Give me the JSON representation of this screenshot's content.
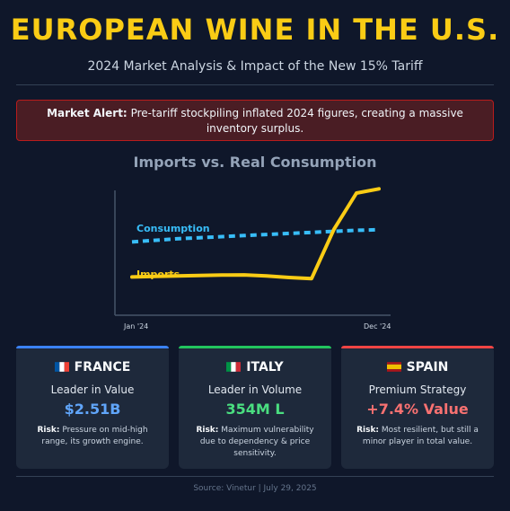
{
  "header": {
    "title": "EUROPEAN WINE IN THE U.S.",
    "subtitle": "2024 Market Analysis & Impact of the New 15% Tariff"
  },
  "alert": {
    "label": "Market Alert:",
    "text": "Pre-tariff stockpiling inflated 2024 figures, creating a massive inventory surplus."
  },
  "chart_data": {
    "type": "line",
    "title": "Imports vs. Real Consumption",
    "x_labels": [
      "Jan '24",
      "Dec '24"
    ],
    "x": [
      0,
      1,
      2,
      3,
      4,
      5,
      6,
      7,
      8,
      9,
      10,
      11
    ],
    "series": [
      {
        "name": "Consumption",
        "style": "dashed",
        "color": "#38bdf8",
        "values": [
          58,
          59.5,
          61,
          62,
          63,
          64,
          65,
          66,
          67,
          68,
          69,
          69.5
        ]
      },
      {
        "name": "Imports",
        "style": "solid",
        "color": "#facc15",
        "values": [
          25,
          25.5,
          26,
          26.5,
          26.8,
          27,
          26,
          24.5,
          23.5,
          70,
          104,
          108
        ]
      }
    ],
    "ylim": [
      0,
      115
    ],
    "grid": false,
    "legend": "inline"
  },
  "cards": [
    {
      "country": "FRANCE",
      "role": "Leader in Value",
      "value": "$2.51B",
      "risk_label": "Risk:",
      "risk_text": "Pressure on mid-high range, its growth engine.",
      "accent": "#3b82f6",
      "value_color": "#60a5fa"
    },
    {
      "country": "ITALY",
      "role": "Leader in Volume",
      "value": "354M L",
      "risk_label": "Risk:",
      "risk_text": "Maximum vulnerability due to dependency & price sensitivity.",
      "accent": "#22c55e",
      "value_color": "#4ade80"
    },
    {
      "country": "SPAIN",
      "role": "Premium Strategy",
      "value": "+7.4% Value",
      "risk_label": "Risk:",
      "risk_text": "Most resilient, but still a minor player in total value.",
      "accent": "#ef4444",
      "value_color": "#f87171"
    }
  ],
  "footer": {
    "text": "Source: Vinetur | July 29, 2025"
  }
}
